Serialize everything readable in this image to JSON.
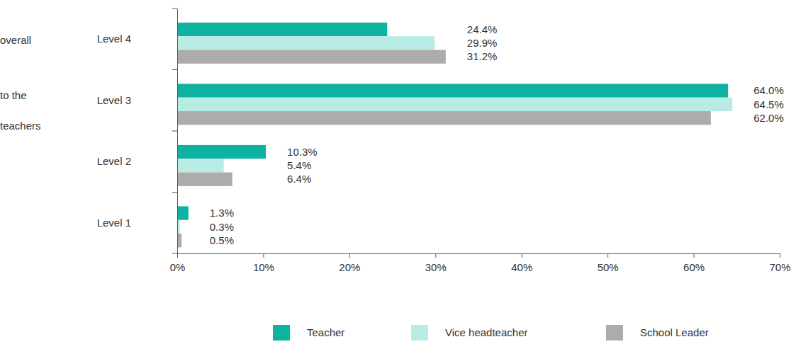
{
  "chart_data": {
    "type": "bar",
    "orientation": "horizontal",
    "annotations": [
      "overall",
      "to the",
      "teachers"
    ],
    "categories": [
      "Level 4",
      "Level 3",
      "Level 2",
      "Level 1"
    ],
    "series": [
      {
        "name": "Teacher",
        "color": "#0db3a0",
        "values": [
          24.4,
          64.0,
          10.3,
          1.3
        ],
        "value_labels": [
          "24.4%",
          "64.0%",
          "10.3%",
          "1.3%"
        ]
      },
      {
        "name": "Vice headteacher",
        "color": "#b8ebe3",
        "values": [
          29.9,
          64.5,
          5.4,
          0.3
        ],
        "value_labels": [
          "29.9%",
          "64.5%",
          "5.4%",
          "0.3%"
        ]
      },
      {
        "name": "School Leader",
        "color": "#acacac",
        "values": [
          31.2,
          62.0,
          6.4,
          0.5
        ],
        "value_labels": [
          "31.2%",
          "62.0%",
          "6.4%",
          "0.5%"
        ]
      }
    ],
    "xlim": [
      0,
      70
    ],
    "xticks": [
      {
        "value": 0,
        "label": "0%"
      },
      {
        "value": 10,
        "label": "10%"
      },
      {
        "value": 20,
        "label": "20%"
      },
      {
        "value": 30,
        "label": "30%"
      },
      {
        "value": 40,
        "label": "40%"
      },
      {
        "value": 50,
        "label": "50%"
      },
      {
        "value": 60,
        "label": "60%"
      },
      {
        "value": 70,
        "label": "70%"
      }
    ],
    "data_labels": true,
    "legend": "bottom"
  }
}
